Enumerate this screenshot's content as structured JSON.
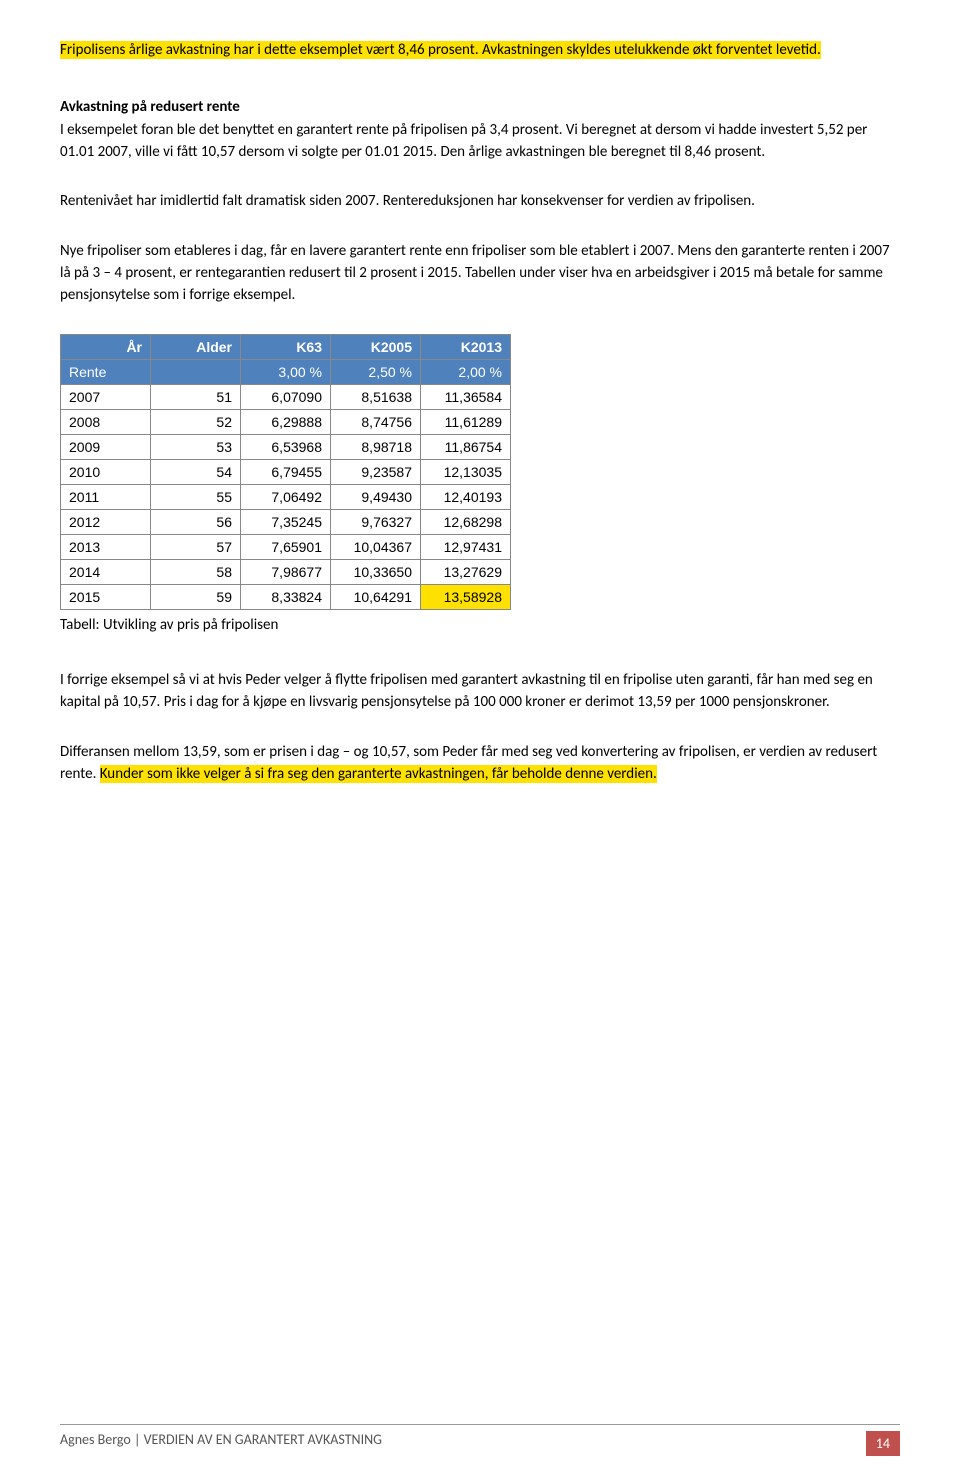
{
  "intro": {
    "highlight1": "Fripolisens årlige avkastning har i dette eksemplet vært 8,46 prosent. Avkastningen skyldes utelukkende økt forventet levetid."
  },
  "section1": {
    "title": "Avkastning på redusert rente",
    "para1": "I eksempelet foran ble det benyttet en garantert rente på fripolisen på 3,4 prosent. Vi beregnet at dersom vi hadde investert 5,52 per 01.01 2007, ville vi fått 10,57 dersom vi solgte per 01.01 2015. Den årlige avkastningen ble beregnet til 8,46 prosent.",
    "para2": "Rentenivået har imidlertid falt dramatisk siden 2007. Rentereduksjonen har konsekvenser for verdien av fripolisen.",
    "para3": "Nye fripoliser som etableres i dag, får en lavere garantert rente enn fripoliser som ble etablert i 2007. Mens den garanterte renten i 2007 lå på 3 – 4 prosent, er rentegarantien redusert til 2 prosent i 2015. Tabellen under viser hva en arbeidsgiver i 2015 må betale for samme pensjonsytelse som i forrige eksempel."
  },
  "table": {
    "headers": [
      "År",
      "Alder",
      "K63",
      "K2005",
      "K2013"
    ],
    "rente_row": [
      "Rente",
      "",
      "3,00 %",
      "2,50 %",
      "2,00 %"
    ],
    "rows": [
      [
        "2007",
        "51",
        "6,07090",
        "8,51638",
        "11,36584"
      ],
      [
        "2008",
        "52",
        "6,29888",
        "8,74756",
        "11,61289"
      ],
      [
        "2009",
        "53",
        "6,53968",
        "8,98718",
        "11,86754"
      ],
      [
        "2010",
        "54",
        "6,79455",
        "9,23587",
        "12,13035"
      ],
      [
        "2011",
        "55",
        "7,06492",
        "9,49430",
        "12,40193"
      ],
      [
        "2012",
        "56",
        "7,35245",
        "9,76327",
        "12,68298"
      ],
      [
        "2013",
        "57",
        "7,65901",
        "10,04367",
        "12,97431"
      ],
      [
        "2014",
        "58",
        "7,98677",
        "10,33650",
        "13,27629"
      ],
      [
        "2015",
        "59",
        "8,33824",
        "10,64291",
        "13,58928"
      ]
    ],
    "caption": "Tabell: Utvikling av pris på fripolisen"
  },
  "after_table": {
    "para1": "I forrige eksempel så vi at hvis Peder velger å flytte fripolisen med garantert avkastning til en fripolise uten garanti, får han med seg en kapital på 10,57. Pris i dag for å kjøpe en livsvarig pensjonsytelse på 100 000 kroner er derimot 13,59 per 1000 pensjonskroner.",
    "para2_pre": "Differansen mellom 13,59, som er prisen i dag – og 10,57, som Peder får med seg ved konvertering av fripolisen, er verdien av redusert rente. ",
    "para2_hl": "Kunder som ikke velger å si fra seg den garanterte avkastningen, får beholde denne verdien."
  },
  "footer": {
    "text": "Agnes Bergo | VERDIEN AV EN GARANTERT AVKASTNING",
    "page": "14"
  },
  "colors": {
    "highlight": "#ffe100",
    "table_header_bg": "#4f81bd",
    "table_header_text": "#ffffff",
    "page_badge_bg": "#c0504d"
  }
}
